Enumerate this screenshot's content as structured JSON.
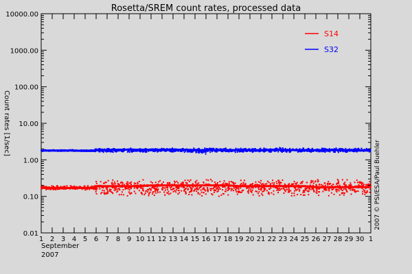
{
  "chart_data": {
    "type": "scatter",
    "title": "Rosetta/SREM count rates, processed data",
    "ylabel": "Count rates [1/sec]",
    "yscale": "log",
    "ylim": [
      0.01,
      10000
    ],
    "ytick_values": [
      0.01,
      0.1,
      1,
      10,
      100,
      1000,
      10000
    ],
    "ytick_labels": [
      "0.01",
      "0.10",
      "1.00",
      "10.00",
      "100.00",
      "1000.00",
      "10000.00"
    ],
    "x_unit": "day",
    "xlim": [
      1,
      31
    ],
    "xtick_labels": [
      "1",
      "2",
      "3",
      "4",
      "5",
      "6",
      "7",
      "8",
      "9",
      "10",
      "11",
      "12",
      "13",
      "14",
      "15",
      "16",
      "17",
      "18",
      "19",
      "20",
      "21",
      "22",
      "23",
      "24",
      "25",
      "26",
      "27",
      "28",
      "29",
      "30",
      "1"
    ],
    "xlabel_lines": [
      "September",
      "2007"
    ],
    "legend_position": "top-right",
    "credit": "2007 © PSI/ESA/Paul Buehler",
    "series": [
      {
        "name": "S14",
        "color": "#ff0000",
        "x": [
          1,
          2,
          3,
          4,
          5,
          5.8,
          5.9,
          7,
          8,
          9,
          10,
          11,
          12,
          13,
          14,
          15,
          16,
          17,
          18,
          19,
          20,
          21,
          22,
          23,
          24,
          25,
          26,
          27,
          28,
          29,
          30,
          31
        ],
        "y": [
          0.17,
          0.17,
          0.17,
          0.17,
          0.17,
          0.17,
          0.19,
          0.19,
          0.19,
          0.19,
          0.19,
          0.2,
          0.2,
          0.2,
          0.2,
          0.2,
          0.2,
          0.2,
          0.2,
          0.19,
          0.19,
          0.19,
          0.19,
          0.19,
          0.19,
          0.19,
          0.18,
          0.18,
          0.18,
          0.18,
          0.18,
          0.18
        ],
        "y_range": [
          [
            0.15,
            0.2
          ],
          [
            0.15,
            0.2
          ],
          [
            0.15,
            0.2
          ],
          [
            0.15,
            0.2
          ],
          [
            0.15,
            0.2
          ],
          [
            0.15,
            0.2
          ],
          [
            0.1,
            0.3
          ],
          [
            0.1,
            0.3
          ],
          [
            0.1,
            0.3
          ],
          [
            0.1,
            0.3
          ],
          [
            0.1,
            0.3
          ],
          [
            0.1,
            0.3
          ],
          [
            0.1,
            0.3
          ],
          [
            0.1,
            0.3
          ],
          [
            0.1,
            0.3
          ],
          [
            0.1,
            0.3
          ],
          [
            0.1,
            0.3
          ],
          [
            0.1,
            0.3
          ],
          [
            0.1,
            0.3
          ],
          [
            0.1,
            0.3
          ],
          [
            0.1,
            0.3
          ],
          [
            0.1,
            0.3
          ],
          [
            0.1,
            0.3
          ],
          [
            0.1,
            0.3
          ],
          [
            0.1,
            0.3
          ],
          [
            0.1,
            0.3
          ],
          [
            0.1,
            0.3
          ],
          [
            0.1,
            0.3
          ],
          [
            0.1,
            0.3
          ],
          [
            0.1,
            0.3
          ],
          [
            0.1,
            0.3
          ],
          [
            0.1,
            0.3
          ]
        ]
      },
      {
        "name": "S32",
        "color": "#0000ff",
        "x": [
          1,
          2,
          3,
          4,
          5,
          5.8,
          5.9,
          7,
          8,
          9,
          10,
          11,
          12,
          13,
          14,
          15,
          16,
          17,
          18,
          19,
          20,
          21,
          22,
          23,
          24,
          25,
          26,
          27,
          28,
          29,
          30,
          31
        ],
        "y": [
          1.8,
          1.8,
          1.8,
          1.8,
          1.75,
          1.75,
          1.85,
          1.85,
          1.9,
          1.9,
          1.9,
          1.9,
          1.9,
          1.9,
          1.9,
          1.85,
          1.85,
          1.85,
          1.85,
          1.85,
          1.85,
          1.85,
          1.9,
          1.85,
          1.85,
          1.85,
          1.85,
          1.85,
          1.85,
          1.8,
          1.8,
          1.8
        ],
        "y_range": [
          [
            1.7,
            1.9
          ],
          [
            1.7,
            1.9
          ],
          [
            1.7,
            1.9
          ],
          [
            1.7,
            1.9
          ],
          [
            1.7,
            1.9
          ],
          [
            1.7,
            1.9
          ],
          [
            1.6,
            2.1
          ],
          [
            1.6,
            2.1
          ],
          [
            1.6,
            2.1
          ],
          [
            1.6,
            2.1
          ],
          [
            1.6,
            2.1
          ],
          [
            1.6,
            2.1
          ],
          [
            1.6,
            2.1
          ],
          [
            1.6,
            2.1
          ],
          [
            1.6,
            2.1
          ],
          [
            1.4,
            2.1
          ],
          [
            1.6,
            2.1
          ],
          [
            1.6,
            2.1
          ],
          [
            1.6,
            2.1
          ],
          [
            1.6,
            2.1
          ],
          [
            1.6,
            2.1
          ],
          [
            1.6,
            2.1
          ],
          [
            1.6,
            2.2
          ],
          [
            1.6,
            2.1
          ],
          [
            1.6,
            2.1
          ],
          [
            1.6,
            2.1
          ],
          [
            1.6,
            2.1
          ],
          [
            1.6,
            2.1
          ],
          [
            1.6,
            2.1
          ],
          [
            1.6,
            2.1
          ],
          [
            1.6,
            2.1
          ],
          [
            1.6,
            2.1
          ]
        ]
      }
    ]
  }
}
